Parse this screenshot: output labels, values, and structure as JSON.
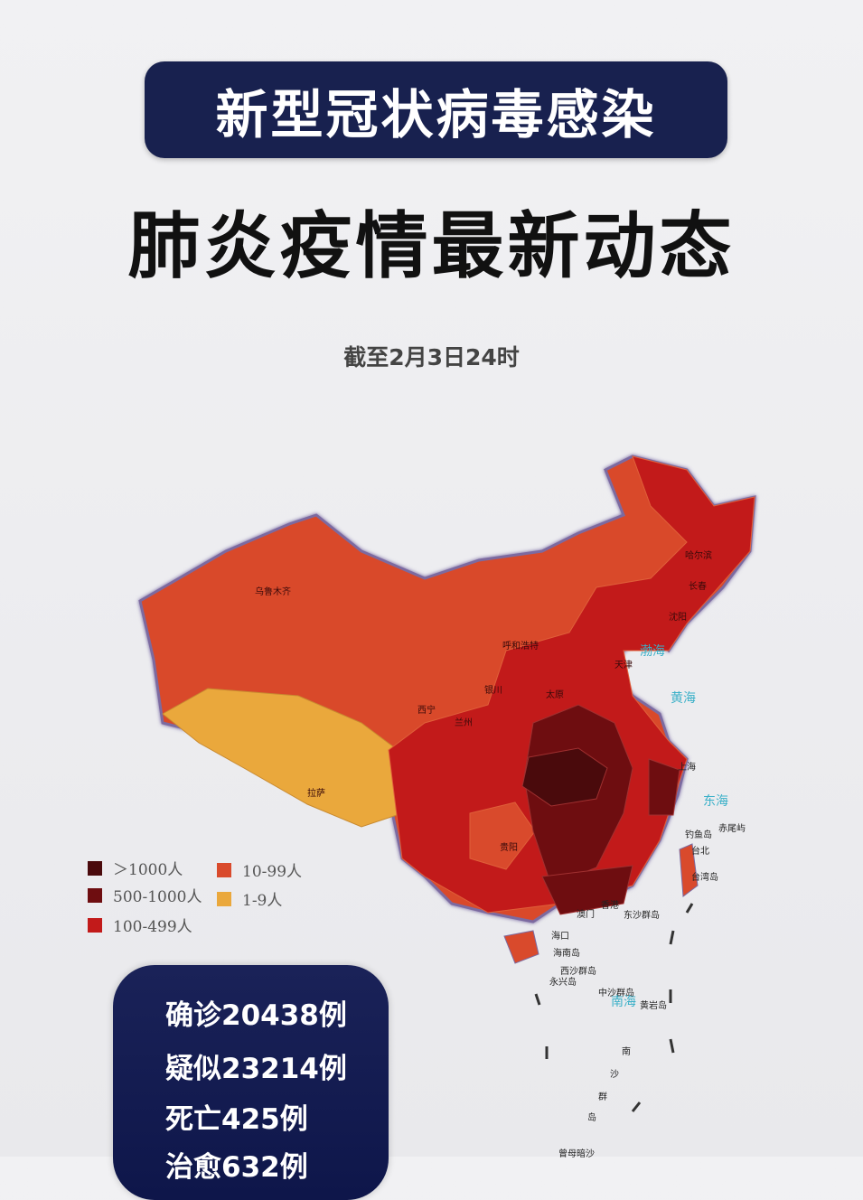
{
  "header": {
    "title": "新型冠状病毒感染",
    "subtitle": "肺炎疫情最新动态",
    "date": "截至2月3日24时"
  },
  "colors": {
    "navy": "#18214f",
    "over_1000": "#4a0a0c",
    "500_1000": "#6e0d10",
    "100_499": "#c21a1a",
    "10_99": "#d94a2c",
    "1_9": "#eaa83c",
    "sea_label": "#3ab0c8"
  },
  "legend": [
    {
      "label": "＞1000人",
      "color": "#4a0a0c"
    },
    {
      "label": "500-1000人",
      "color": "#6e0d10"
    },
    {
      "label": "100-499人",
      "color": "#c21a1a"
    },
    {
      "label": "10-99人",
      "color": "#d94a2c"
    },
    {
      "label": "1-9人",
      "color": "#eaa83c"
    }
  ],
  "map": {
    "cities": [
      "乌鲁木齐",
      "呼和浩特",
      "银川",
      "太原",
      "西宁",
      "兰州",
      "拉萨",
      "贵阳",
      "天津",
      "上海",
      "长春",
      "沈阳",
      "哈尔滨",
      "香港",
      "澳门",
      "海口",
      "台北"
    ],
    "islands": [
      "海南岛",
      "台湾岛",
      "钓鱼岛",
      "赤尾屿",
      "东沙群岛",
      "西沙群岛",
      "永兴岛",
      "中沙群岛",
      "黄岩岛",
      "南",
      "沙",
      "群",
      "岛",
      "曾母暗沙"
    ],
    "seas": [
      "渤海",
      "黄海",
      "东海",
      "南海"
    ]
  },
  "stats": [
    "确诊20438例",
    "疑似23214例",
    "死亡425例",
    "治愈632例"
  ]
}
